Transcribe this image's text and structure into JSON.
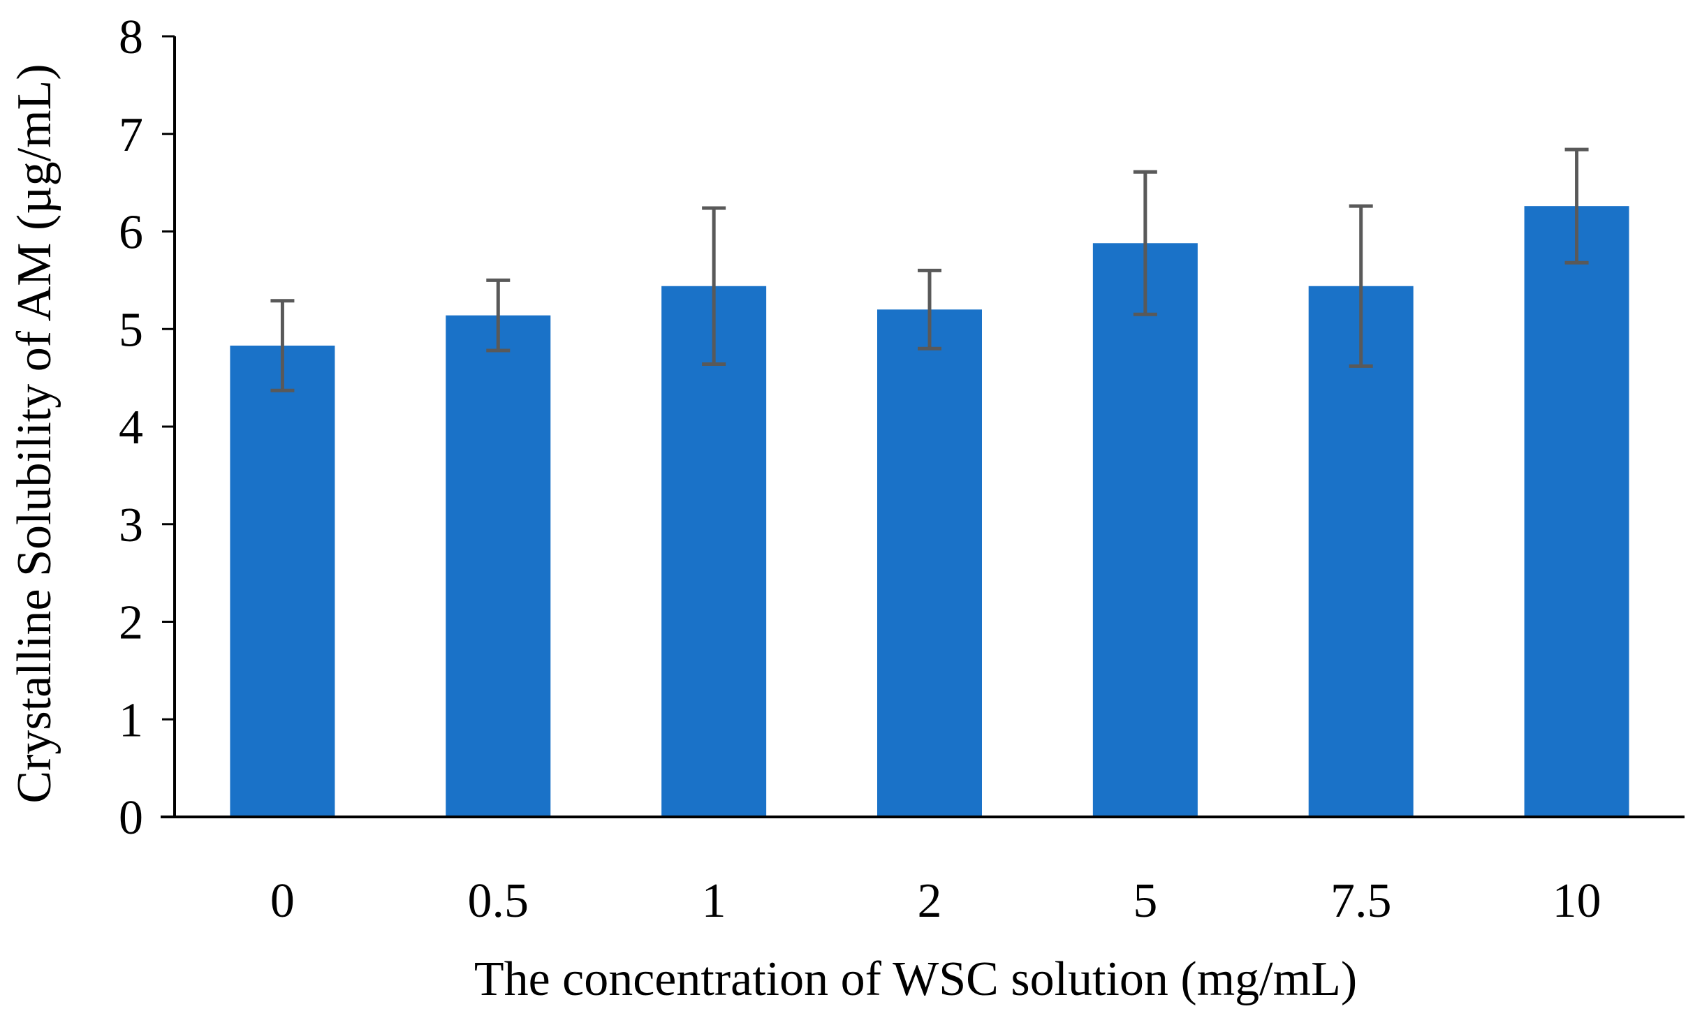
{
  "chart_data": {
    "type": "bar",
    "title": "",
    "xlabel": "The concentration of WSC solution (mg/mL)",
    "ylabel": "Crystalline Solubility of AM (µg/mL)",
    "categories": [
      "0",
      "0.5",
      "1",
      "2",
      "5",
      "7.5",
      "10"
    ],
    "values": [
      4.83,
      5.14,
      5.44,
      5.2,
      5.88,
      5.44,
      6.26
    ],
    "error_bars": [
      0.46,
      0.36,
      0.8,
      0.4,
      0.73,
      0.82,
      0.58
    ],
    "ylim": [
      0,
      8
    ],
    "yticks": [
      "0",
      "1",
      "2",
      "3",
      "4",
      "5",
      "6",
      "7",
      "8"
    ],
    "grid": false,
    "legend": "none",
    "colors": {
      "bar": "#1a72c8",
      "error_bar": "#595959",
      "axis": "#000000"
    }
  }
}
